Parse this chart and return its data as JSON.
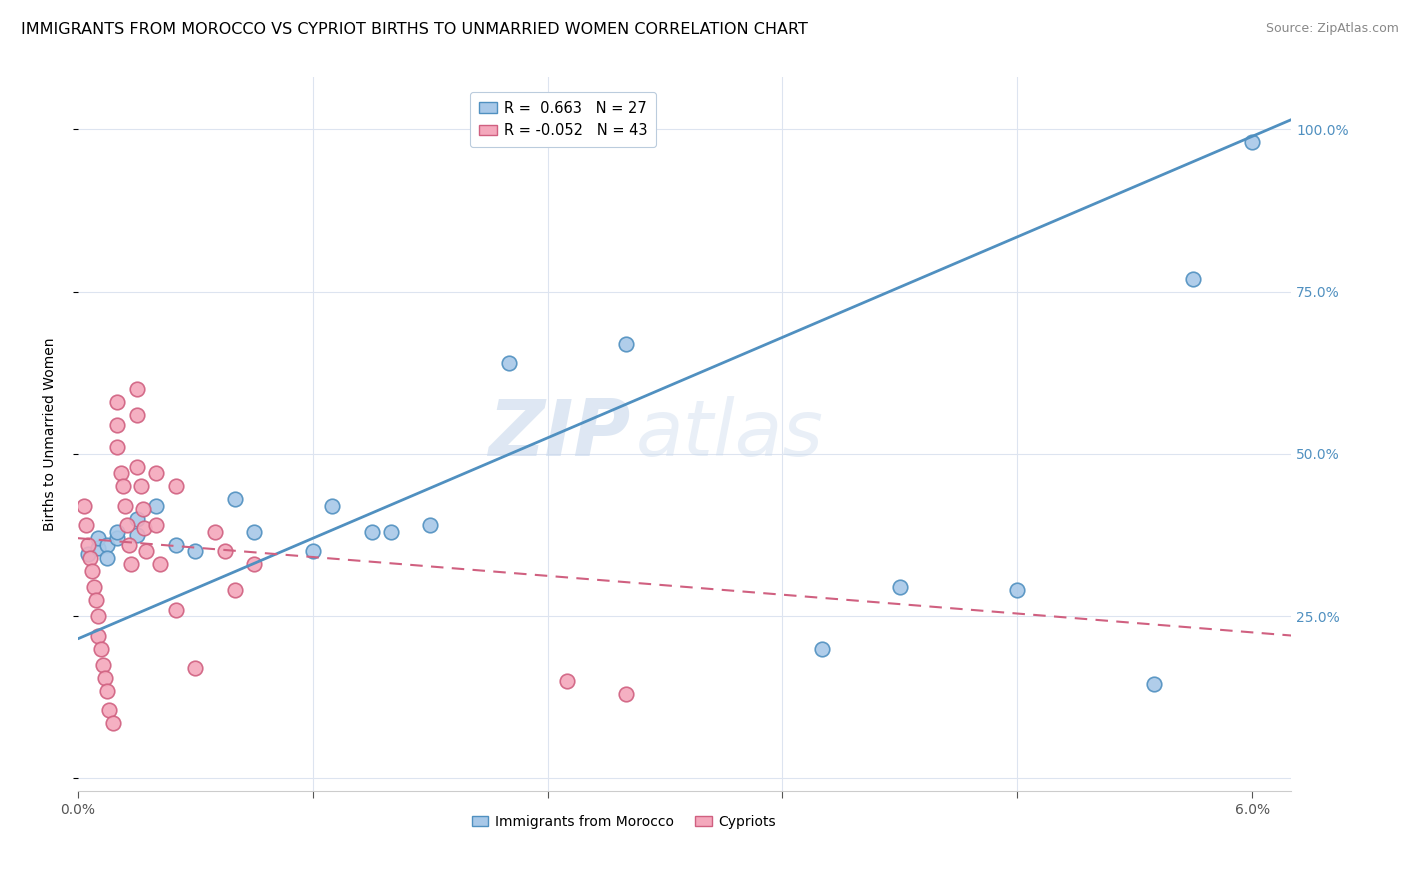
{
  "title": "IMMIGRANTS FROM MOROCCO VS CYPRIOT BIRTHS TO UNMARRIED WOMEN CORRELATION CHART",
  "source": "Source: ZipAtlas.com",
  "ylabel": "Births to Unmarried Women",
  "legend_entries": [
    {
      "label": "Immigrants from Morocco",
      "R": "0.663",
      "N": "27",
      "color": "#a8c8e8"
    },
    {
      "label": "Cypriots",
      "R": "-0.052",
      "N": "43",
      "color": "#f4a8bc"
    }
  ],
  "xlim": [
    0.0,
    0.062
  ],
  "ylim": [
    -0.02,
    1.08
  ],
  "yticks": [
    0.0,
    0.25,
    0.5,
    0.75,
    1.0
  ],
  "ytick_labels_right": [
    "",
    "25.0%",
    "50.0%",
    "75.0%",
    "100.0%"
  ],
  "xticks": [
    0.0,
    0.012,
    0.024,
    0.036,
    0.048,
    0.06
  ],
  "xtick_labels": [
    "0.0%",
    "",
    "",
    "",
    "",
    "6.0%"
  ],
  "morocco_scatter": [
    [
      0.0005,
      0.345
    ],
    [
      0.001,
      0.355
    ],
    [
      0.001,
      0.37
    ],
    [
      0.0015,
      0.36
    ],
    [
      0.0015,
      0.34
    ],
    [
      0.002,
      0.37
    ],
    [
      0.002,
      0.38
    ],
    [
      0.003,
      0.4
    ],
    [
      0.003,
      0.375
    ],
    [
      0.004,
      0.42
    ],
    [
      0.005,
      0.36
    ],
    [
      0.006,
      0.35
    ],
    [
      0.008,
      0.43
    ],
    [
      0.009,
      0.38
    ],
    [
      0.012,
      0.35
    ],
    [
      0.013,
      0.42
    ],
    [
      0.015,
      0.38
    ],
    [
      0.016,
      0.38
    ],
    [
      0.018,
      0.39
    ],
    [
      0.022,
      0.64
    ],
    [
      0.028,
      0.67
    ],
    [
      0.038,
      0.2
    ],
    [
      0.042,
      0.295
    ],
    [
      0.048,
      0.29
    ],
    [
      0.055,
      0.145
    ],
    [
      0.057,
      0.77
    ],
    [
      0.06,
      0.98
    ]
  ],
  "cyprus_scatter": [
    [
      0.0003,
      0.42
    ],
    [
      0.0004,
      0.39
    ],
    [
      0.0005,
      0.36
    ],
    [
      0.0006,
      0.34
    ],
    [
      0.0007,
      0.32
    ],
    [
      0.0008,
      0.295
    ],
    [
      0.0009,
      0.275
    ],
    [
      0.001,
      0.25
    ],
    [
      0.001,
      0.22
    ],
    [
      0.0012,
      0.2
    ],
    [
      0.0013,
      0.175
    ],
    [
      0.0014,
      0.155
    ],
    [
      0.0015,
      0.135
    ],
    [
      0.0016,
      0.105
    ],
    [
      0.0018,
      0.085
    ],
    [
      0.002,
      0.58
    ],
    [
      0.002,
      0.545
    ],
    [
      0.002,
      0.51
    ],
    [
      0.0022,
      0.47
    ],
    [
      0.0023,
      0.45
    ],
    [
      0.0024,
      0.42
    ],
    [
      0.0025,
      0.39
    ],
    [
      0.0026,
      0.36
    ],
    [
      0.0027,
      0.33
    ],
    [
      0.003,
      0.6
    ],
    [
      0.003,
      0.56
    ],
    [
      0.003,
      0.48
    ],
    [
      0.0032,
      0.45
    ],
    [
      0.0033,
      0.415
    ],
    [
      0.0034,
      0.385
    ],
    [
      0.0035,
      0.35
    ],
    [
      0.004,
      0.47
    ],
    [
      0.004,
      0.39
    ],
    [
      0.0042,
      0.33
    ],
    [
      0.005,
      0.45
    ],
    [
      0.005,
      0.26
    ],
    [
      0.006,
      0.17
    ],
    [
      0.007,
      0.38
    ],
    [
      0.0075,
      0.35
    ],
    [
      0.008,
      0.29
    ],
    [
      0.009,
      0.33
    ],
    [
      0.025,
      0.15
    ],
    [
      0.028,
      0.13
    ]
  ],
  "morocco_line_x": [
    0.0,
    0.062
  ],
  "morocco_line_y": [
    0.215,
    1.015
  ],
  "cyprus_line_x": [
    0.0,
    0.062
  ],
  "cyprus_line_y": [
    0.37,
    0.22
  ],
  "morocco_color": "#a8c8e8",
  "morocco_edge_color": "#5090c0",
  "cyprus_color": "#f4a8bc",
  "cyprus_edge_color": "#d06080",
  "watermark_zip": "ZIP",
  "watermark_atlas": "atlas",
  "background_color": "#ffffff",
  "grid_color": "#dde4f0",
  "right_axis_color": "#5090c0",
  "title_fontsize": 11.5,
  "source_fontsize": 9,
  "axis_label_fontsize": 10,
  "tick_fontsize": 10
}
